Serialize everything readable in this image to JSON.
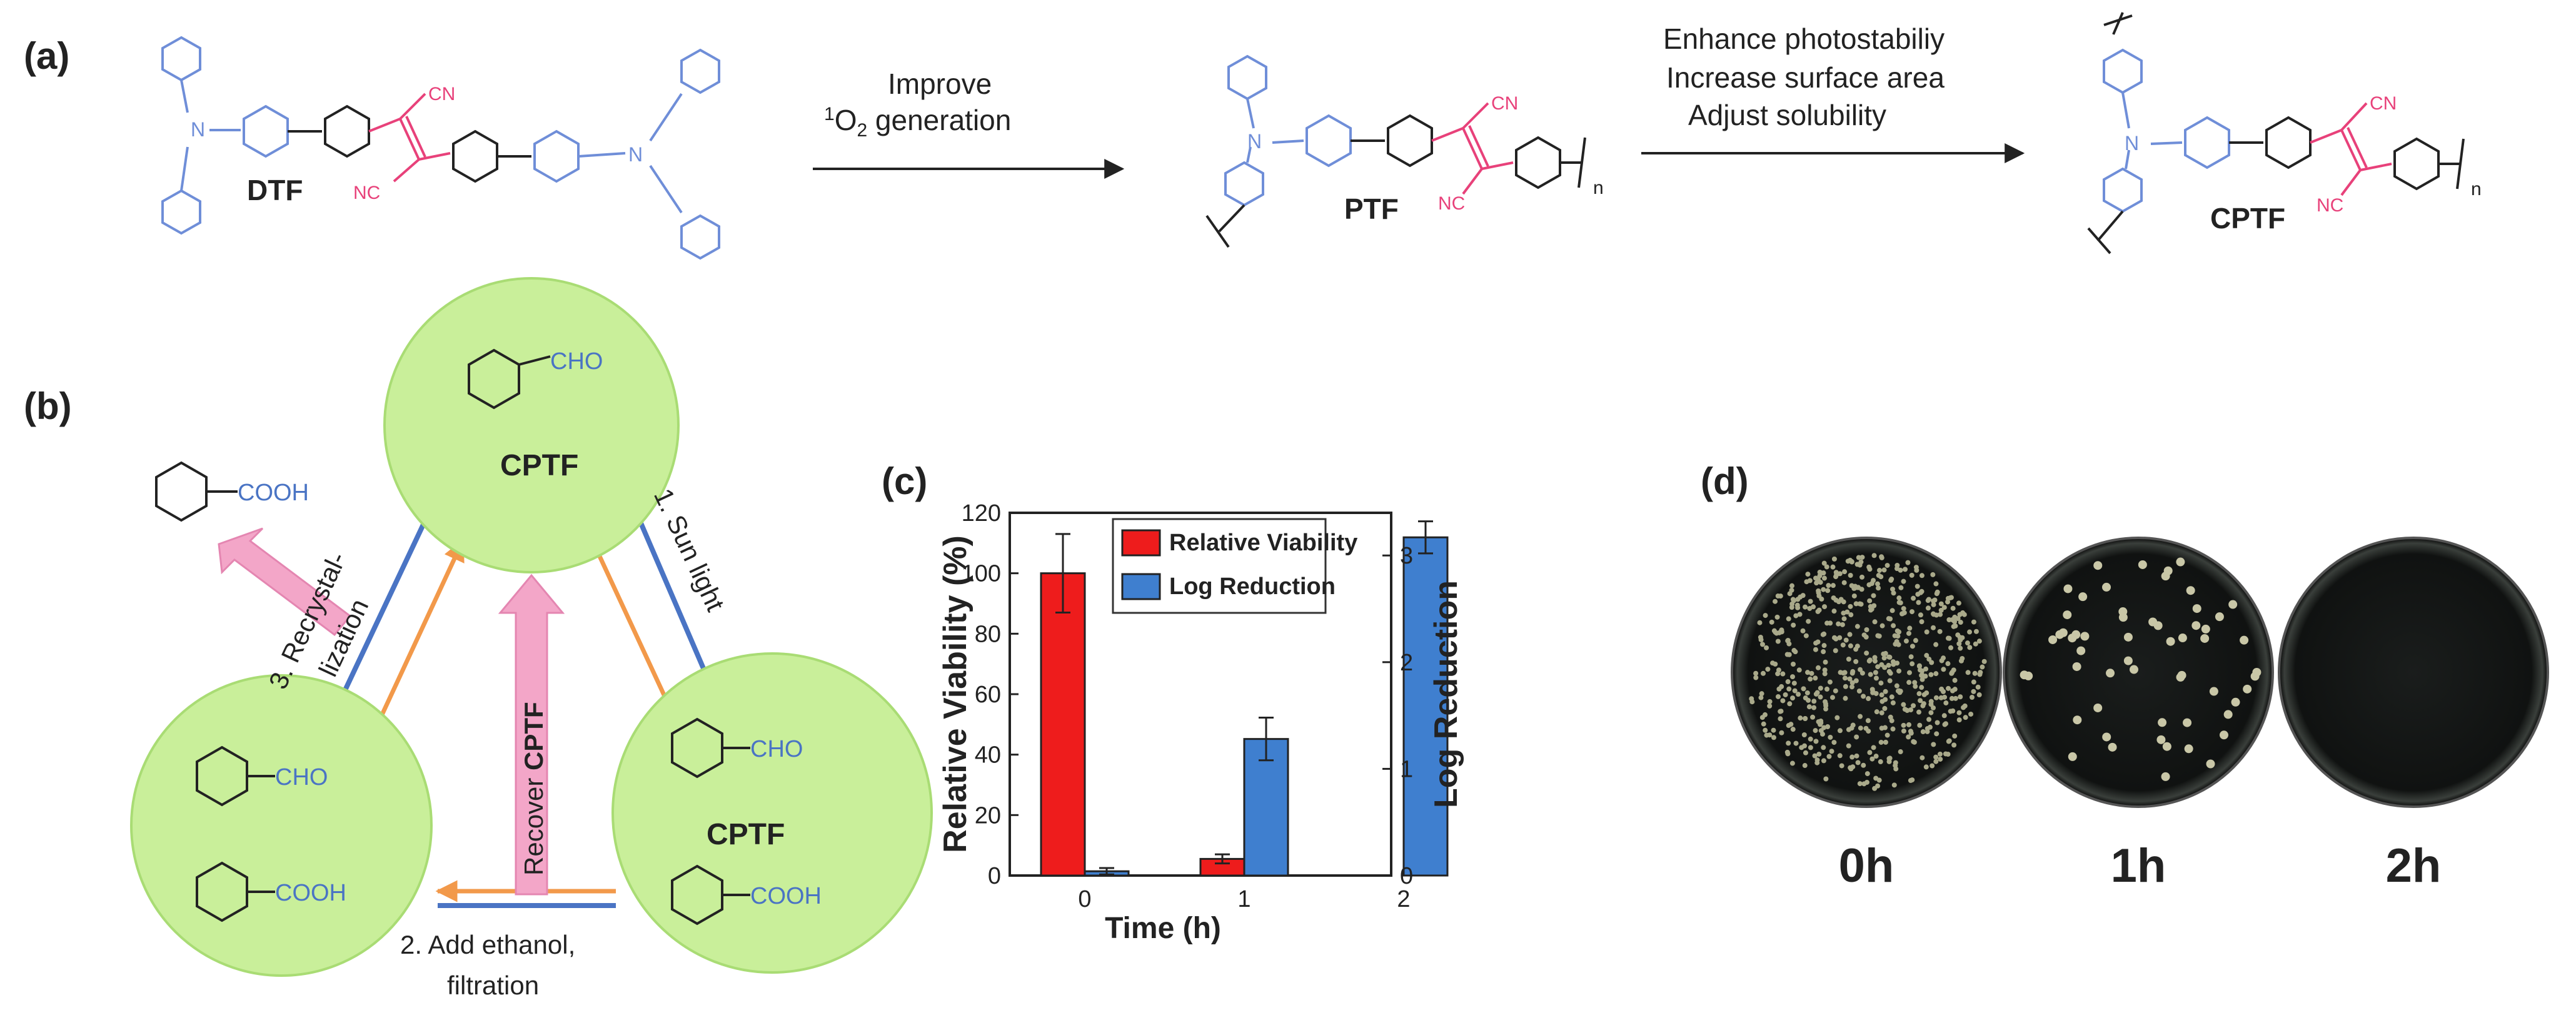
{
  "panel_a": {
    "label": "(a)",
    "molecule_1": "DTF",
    "arrow_1_line1": "Improve",
    "arrow_1_sup": "1",
    "arrow_1_line2": "O",
    "arrow_1_sub": "2",
    "arrow_1_line2_tail": " generation",
    "molecule_2": "PTF",
    "arrow_2_line1": "Enhance photostabiliy",
    "arrow_2_line2": "Increase surface area",
    "arrow_2_line3": "Adjust solubility",
    "molecule_3": "CPTF",
    "cn_label": "CN",
    "nc_label": "NC",
    "n_label": "N",
    "subscript_n": "n"
  },
  "panel_b": {
    "label": "(b)",
    "top_circle_label": "CPTF",
    "right_circle_label": "CPTF",
    "cho": "CHO",
    "cooh": "COOH",
    "step1": "1. Sun light",
    "step2_line1": "2. Add ethanol,",
    "step2_line2": "filtration",
    "step3_line1": "3. Recrystal-",
    "step3_line2": "lization",
    "recover_prefix": "Recover ",
    "recover_bold": "CPTF",
    "colors": {
      "circle": "#c9ef9a",
      "circle_edge": "#a9dc74",
      "blue_line": "#4a74c4",
      "orange": "#f2994a",
      "pink": "#f3a6c8",
      "pink_edge": "#e486b1"
    }
  },
  "chart_data": {
    "type": "bar",
    "panel_label": "(c)",
    "categories": [
      "0",
      "1",
      "2"
    ],
    "xlabel": "Time (h)",
    "ylabel_left": "Relative Viability (%)",
    "ylabel_right": "Log Reduction",
    "ylim_left": [
      0,
      120
    ],
    "ylim_right": [
      0,
      3.4
    ],
    "yticks_left": [
      "0",
      "20",
      "40",
      "60",
      "80",
      "100",
      "120"
    ],
    "yticks_right": [
      "0",
      "1",
      "2",
      "3"
    ],
    "legend_position": "top",
    "series": [
      {
        "name": "Relative Viability",
        "axis": "left",
        "color": "#ee1c1c",
        "values": [
          100,
          5.5,
          null
        ],
        "errors": [
          13,
          1.5,
          null
        ]
      },
      {
        "name": "Log Reduction",
        "axis": "right",
        "color": "#3f7fcf",
        "values": [
          0.04,
          1.28,
          3.17
        ],
        "errors": [
          0.03,
          0.2,
          0.15
        ]
      }
    ]
  },
  "panel_d": {
    "label": "(d)",
    "plates": [
      {
        "label": "0h",
        "colony_count": 600
      },
      {
        "label": "1h",
        "colony_count": 58
      },
      {
        "label": "2h",
        "colony_count": 0
      }
    ]
  },
  "colors": {
    "blue": "#6f8ed8",
    "pink": "#e8417a",
    "black": "#222222"
  }
}
